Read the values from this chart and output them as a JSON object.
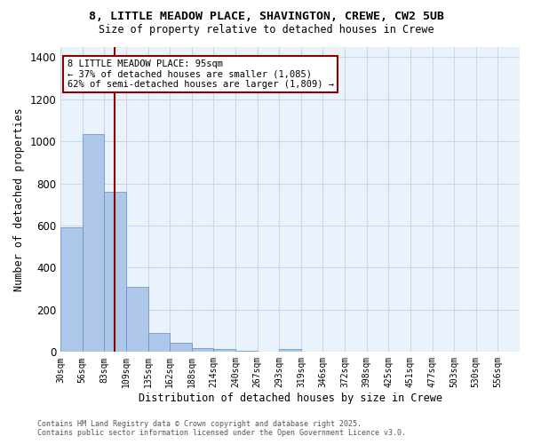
{
  "title_line1": "8, LITTLE MEADOW PLACE, SHAVINGTON, CREWE, CW2 5UB",
  "title_line2": "Size of property relative to detached houses in Crewe",
  "xlabel": "Distribution of detached houses by size in Crewe",
  "ylabel": "Number of detached properties",
  "footer_line1": "Contains HM Land Registry data © Crown copyright and database right 2025.",
  "footer_line2": "Contains public sector information licensed under the Open Government Licence v3.0.",
  "annotation_line1": "8 LITTLE MEADOW PLACE: 95sqm",
  "annotation_line2": "← 37% of detached houses are smaller (1,085)",
  "annotation_line3": "62% of semi-detached houses are larger (1,809) →",
  "categories": [
    "30sqm",
    "56sqm",
    "83sqm",
    "109sqm",
    "135sqm",
    "162sqm",
    "188sqm",
    "214sqm",
    "240sqm",
    "267sqm",
    "293sqm",
    "319sqm",
    "346sqm",
    "372sqm",
    "398sqm",
    "425sqm",
    "451sqm",
    "477sqm",
    "503sqm",
    "530sqm",
    "556sqm"
  ],
  "values": [
    590,
    1035,
    760,
    310,
    90,
    45,
    20,
    12,
    5,
    3,
    15,
    0,
    0,
    0,
    0,
    0,
    0,
    0,
    0,
    0,
    0
  ],
  "bar_color": "#aec6e8",
  "bar_edge_color": "#5b8fc9",
  "grid_color": "#c8d8e8",
  "background_color": "#eaf2fb",
  "vline_color": "#8b0000",
  "vline_x_index": 2.46,
  "annotation_box_color": "#8b0000",
  "ylim": [
    0,
    1450
  ],
  "yticks": [
    0,
    200,
    400,
    600,
    800,
    1000,
    1200,
    1400
  ]
}
